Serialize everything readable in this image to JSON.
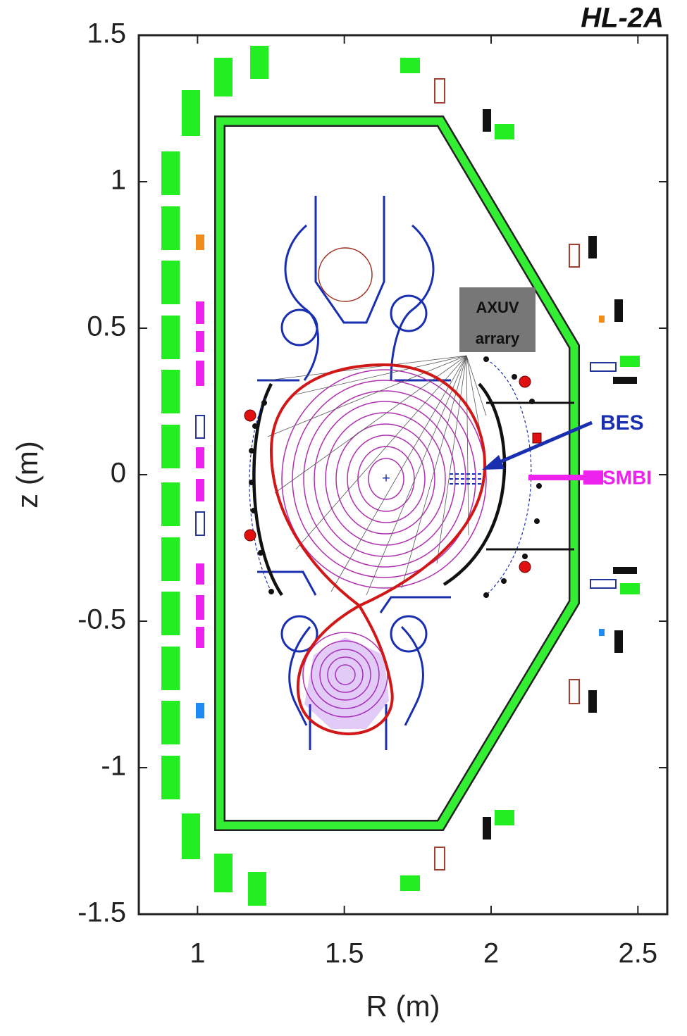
{
  "chart_data": {
    "type": "scatter",
    "title": "HL-2A",
    "x_label": "R (m)",
    "y_label": "z (m)",
    "xlim": [
      0.8,
      2.6
    ],
    "ylim": [
      -1.5,
      1.5
    ],
    "xticks": [
      1,
      1.5,
      2,
      2.5
    ],
    "yticks": [
      1.5,
      1,
      0.5,
      0,
      -0.5,
      -1,
      -1.5
    ],
    "annotations": {
      "axuv": [
        "AXUV",
        "arrary"
      ],
      "bes": "BES",
      "smbi": "SMBI"
    }
  }
}
